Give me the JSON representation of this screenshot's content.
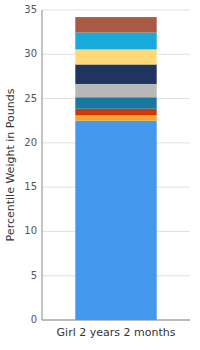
{
  "chart_data": {
    "type": "bar",
    "stacked": true,
    "categories": [
      "Girl 2 years 2 months"
    ],
    "ylabel": "Percentile Weight in Pounds",
    "series": [
      {
        "color": "#4499ee",
        "values": [
          22.5
        ]
      },
      {
        "color": "#f0a830",
        "values": [
          0.6
        ]
      },
      {
        "color": "#d03808",
        "values": [
          0.75
        ]
      },
      {
        "color": "#1878a0",
        "values": [
          1.3
        ]
      },
      {
        "color": "#b8b8b8",
        "values": [
          1.5
        ]
      },
      {
        "color": "#1e3560",
        "values": [
          2.2
        ]
      },
      {
        "color": "#ffd878",
        "values": [
          1.7
        ]
      },
      {
        "color": "#18aadd",
        "values": [
          1.9
        ]
      },
      {
        "color": "#a85a45",
        "values": [
          1.75
        ]
      }
    ],
    "ylim": [
      0,
      35
    ],
    "yticks": [
      0,
      5,
      10,
      15,
      20,
      25,
      30,
      35
    ],
    "grid": true
  }
}
